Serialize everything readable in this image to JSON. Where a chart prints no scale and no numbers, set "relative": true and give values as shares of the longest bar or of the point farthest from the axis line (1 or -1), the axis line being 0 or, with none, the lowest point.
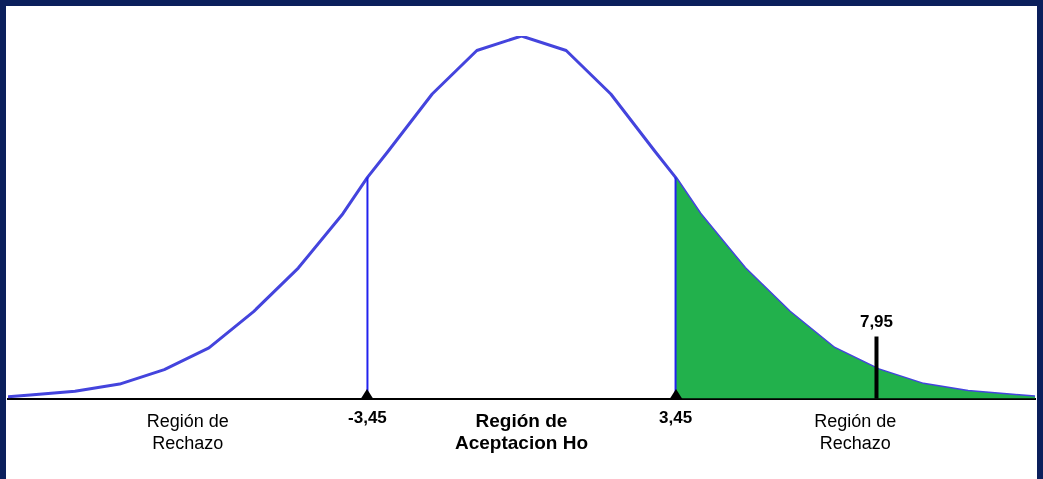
{
  "chart_data": {
    "type": "line",
    "relative": true,
    "xlim": [
      -11.5,
      11.5
    ],
    "xticks": [
      {
        "value": -3.45,
        "label": "-3,45"
      },
      {
        "value": 3.45,
        "label": "3,45"
      }
    ],
    "tick_labels": "x",
    "marker": "none",
    "line_style": "solid",
    "series": [
      {
        "type": "area",
        "color": "#22b14c",
        "x": [
          3.45,
          4,
          5,
          6,
          7,
          8,
          9,
          10,
          11,
          11.5
        ],
        "values": [
          0.61,
          0.51,
          0.36,
          0.24,
          0.14,
          0.08,
          0.04,
          0.02,
          0.01,
          0.005
        ]
      },
      {
        "type": "line",
        "color": "#4444dd",
        "x": [
          -11.5,
          -11,
          -10,
          -9,
          -8,
          -7,
          -6,
          -5,
          -4,
          -3.45,
          -3,
          -2,
          -1,
          0,
          1,
          2,
          3,
          3.45,
          4,
          5,
          6,
          7,
          8,
          9,
          10,
          11,
          11.5
        ],
        "values": [
          0.005,
          0.01,
          0.02,
          0.04,
          0.08,
          0.14,
          0.24,
          0.36,
          0.51,
          0.61,
          0.68,
          0.84,
          0.96,
          1,
          0.96,
          0.84,
          0.68,
          0.61,
          0.51,
          0.36,
          0.24,
          0.14,
          0.08,
          0.04,
          0.02,
          0.01,
          0.005
        ]
      }
    ],
    "ref_lines": [
      {
        "axis": "x",
        "value": -3.45,
        "color": "#2222ee"
      },
      {
        "axis": "x",
        "value": 3.45,
        "color": "#2222ee"
      },
      {
        "axis": "x",
        "value": 7.95,
        "label": "7,95",
        "color": "#000000"
      }
    ],
    "annotations": [
      "Región de\nRechazo",
      "Región de\nAceptacion Ho",
      "Región de\nRechazo"
    ]
  }
}
